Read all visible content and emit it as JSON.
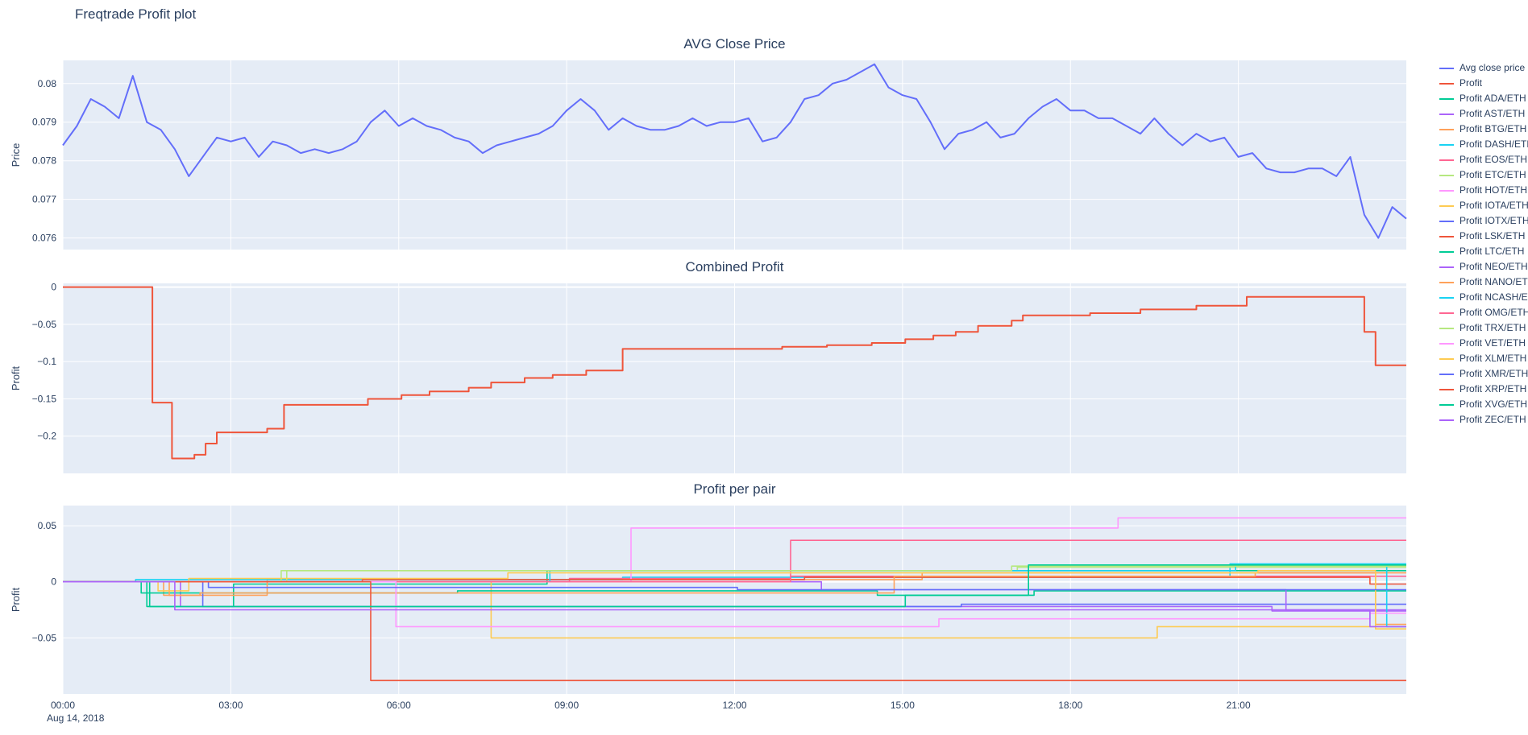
{
  "page_title": "Freqtrade Profit plot",
  "date_annotation": "Aug 14, 2018",
  "colors": {
    "text": "#2a3f5f",
    "plot_bg": "#E5ECF6",
    "grid": "#FFFFFF",
    "page_bg": "#FFFFFF"
  },
  "x_axis": {
    "range": [
      0,
      24
    ],
    "ticks": [
      {
        "v": 0,
        "label": "00:00"
      },
      {
        "v": 3,
        "label": "03:00"
      },
      {
        "v": 6,
        "label": "06:00"
      },
      {
        "v": 9,
        "label": "09:00"
      },
      {
        "v": 12,
        "label": "12:00"
      },
      {
        "v": 15,
        "label": "15:00"
      },
      {
        "v": 18,
        "label": "18:00"
      },
      {
        "v": 21,
        "label": "21:00"
      }
    ]
  },
  "legend": {
    "items": [
      {
        "label": "Avg close price",
        "color": "#636EFA"
      },
      {
        "label": "Profit",
        "color": "#EF553B"
      },
      {
        "label": "Profit ADA/ETH",
        "color": "#00CC96"
      },
      {
        "label": "Profit AST/ETH",
        "color": "#AB63FA"
      },
      {
        "label": "Profit BTG/ETH",
        "color": "#FFA15A"
      },
      {
        "label": "Profit DASH/ETH",
        "color": "#19D3F3"
      },
      {
        "label": "Profit EOS/ETH",
        "color": "#FF6692"
      },
      {
        "label": "Profit ETC/ETH",
        "color": "#B6E880"
      },
      {
        "label": "Profit HOT/ETH",
        "color": "#FF97FF"
      },
      {
        "label": "Profit IOTA/ETH",
        "color": "#FECB52"
      },
      {
        "label": "Profit IOTX/ETH",
        "color": "#636EFA"
      },
      {
        "label": "Profit LSK/ETH",
        "color": "#EF553B"
      },
      {
        "label": "Profit LTC/ETH",
        "color": "#00CC96"
      },
      {
        "label": "Profit NEO/ETH",
        "color": "#AB63FA"
      },
      {
        "label": "Profit NANO/ETH",
        "color": "#FFA15A"
      },
      {
        "label": "Profit NCASH/ETH",
        "color": "#19D3F3"
      },
      {
        "label": "Profit OMG/ETH",
        "color": "#FF6692"
      },
      {
        "label": "Profit TRX/ETH",
        "color": "#B6E880"
      },
      {
        "label": "Profit VET/ETH",
        "color": "#FF97FF"
      },
      {
        "label": "Profit XLM/ETH",
        "color": "#FECB52"
      },
      {
        "label": "Profit XMR/ETH",
        "color": "#636EFA"
      },
      {
        "label": "Profit XRP/ETH",
        "color": "#EF553B"
      },
      {
        "label": "Profit XVG/ETH",
        "color": "#00CC96"
      },
      {
        "label": "Profit ZEC/ETH",
        "color": "#AB63FA"
      }
    ]
  },
  "chart_data": [
    {
      "type": "line",
      "title": "AVG Close Price",
      "ylabel": "Price",
      "y_range": [
        0.0757,
        0.0806
      ],
      "line_width": 2,
      "y_ticks": [
        {
          "v": 0.076,
          "label": "0.076"
        },
        {
          "v": 0.077,
          "label": "0.077"
        },
        {
          "v": 0.078,
          "label": "0.078"
        },
        {
          "v": 0.079,
          "label": "0.079"
        },
        {
          "v": 0.08,
          "label": "0.08"
        }
      ],
      "series": [
        {
          "name": "Avg close price",
          "color": "#636EFA",
          "shape": "linear",
          "x0": 0,
          "dx": 0.25,
          "y": [
            0.0784,
            0.0789,
            0.0796,
            0.0794,
            0.0791,
            0.0802,
            0.079,
            0.0788,
            0.0783,
            0.0776,
            0.0781,
            0.0786,
            0.0785,
            0.0786,
            0.0781,
            0.0785,
            0.0784,
            0.0782,
            0.0783,
            0.0782,
            0.0783,
            0.0785,
            0.079,
            0.0793,
            0.0789,
            0.0791,
            0.0789,
            0.0788,
            0.0786,
            0.0785,
            0.0782,
            0.0784,
            0.0785,
            0.0786,
            0.0787,
            0.0789,
            0.0793,
            0.0796,
            0.0793,
            0.0788,
            0.0791,
            0.0789,
            0.0788,
            0.0788,
            0.0789,
            0.0791,
            0.0789,
            0.079,
            0.079,
            0.0791,
            0.0785,
            0.0786,
            0.079,
            0.0796,
            0.0797,
            0.08,
            0.0801,
            0.0803,
            0.0805,
            0.0799,
            0.0797,
            0.0796,
            0.079,
            0.0783,
            0.0787,
            0.0788,
            0.079,
            0.0786,
            0.0787,
            0.0791,
            0.0794,
            0.0796,
            0.0793,
            0.0793,
            0.0791,
            0.0791,
            0.0789,
            0.0787,
            0.0791,
            0.0787,
            0.0784,
            0.0787,
            0.0785,
            0.0786,
            0.0781,
            0.0782,
            0.0778,
            0.0777,
            0.0777,
            0.0778,
            0.0778,
            0.0776,
            0.0781,
            0.0766,
            0.076,
            0.0768,
            0.0765
          ]
        }
      ]
    },
    {
      "type": "line",
      "title": "Combined Profit",
      "ylabel": "Profit",
      "y_range": [
        -0.25,
        0.005
      ],
      "line_width": 2,
      "y_ticks": [
        {
          "v": 0,
          "label": "0"
        },
        {
          "v": -0.05,
          "label": "−0.05"
        },
        {
          "v": -0.1,
          "label": "−0.1"
        },
        {
          "v": -0.15,
          "label": "−0.15"
        },
        {
          "v": -0.2,
          "label": "−0.2"
        }
      ],
      "series": [
        {
          "name": "Profit",
          "color": "#EF553B",
          "shape": "hv",
          "points": [
            [
              0,
              0
            ],
            [
              1.6,
              -0.155
            ],
            [
              1.95,
              -0.23
            ],
            [
              2.35,
              -0.225
            ],
            [
              2.55,
              -0.21
            ],
            [
              2.75,
              -0.195
            ],
            [
              3.65,
              -0.19
            ],
            [
              3.95,
              -0.158
            ],
            [
              5.45,
              -0.15
            ],
            [
              6.05,
              -0.145
            ],
            [
              6.55,
              -0.14
            ],
            [
              7.25,
              -0.135
            ],
            [
              7.65,
              -0.128
            ],
            [
              8.25,
              -0.122
            ],
            [
              8.75,
              -0.118
            ],
            [
              9.35,
              -0.112
            ],
            [
              10.0,
              -0.083
            ],
            [
              12.85,
              -0.08
            ],
            [
              13.65,
              -0.078
            ],
            [
              14.45,
              -0.075
            ],
            [
              15.05,
              -0.07
            ],
            [
              15.55,
              -0.065
            ],
            [
              15.95,
              -0.06
            ],
            [
              16.35,
              -0.052
            ],
            [
              16.95,
              -0.045
            ],
            [
              17.15,
              -0.038
            ],
            [
              18.35,
              -0.035
            ],
            [
              19.25,
              -0.03
            ],
            [
              20.25,
              -0.025
            ],
            [
              21.15,
              -0.013
            ],
            [
              23.25,
              -0.06
            ],
            [
              23.45,
              -0.105
            ],
            [
              24,
              -0.105
            ]
          ]
        }
      ]
    },
    {
      "type": "line",
      "title": "Profit per pair",
      "ylabel": "Profit",
      "y_range": [
        -0.1,
        0.068
      ],
      "line_width": 1.6,
      "y_ticks": [
        {
          "v": 0.05,
          "label": "0.05"
        },
        {
          "v": 0,
          "label": "0"
        },
        {
          "v": -0.05,
          "label": "−0.05"
        }
      ],
      "series": [
        {
          "name": "Profit ADA/ETH",
          "color": "#00CC96",
          "shape": "hv",
          "points": [
            [
              0,
              0
            ],
            [
              1.5,
              -0.022
            ],
            [
              3.05,
              -0.002
            ],
            [
              8.65,
              0.01
            ],
            [
              24,
              0.01
            ]
          ]
        },
        {
          "name": "Profit AST/ETH",
          "color": "#AB63FA",
          "shape": "hv",
          "points": [
            [
              0,
              0
            ],
            [
              2.1,
              -0.022
            ],
            [
              21.6,
              -0.026
            ],
            [
              24,
              -0.026
            ]
          ]
        },
        {
          "name": "Profit BTG/ETH",
          "color": "#FFA15A",
          "shape": "hv",
          "points": [
            [
              0,
              0
            ],
            [
              1.8,
              -0.012
            ],
            [
              3.65,
              0.002
            ],
            [
              15.35,
              0.008
            ],
            [
              23.45,
              -0.038
            ],
            [
              24,
              -0.038
            ]
          ]
        },
        {
          "name": "Profit DASH/ETH",
          "color": "#19D3F3",
          "shape": "hv",
          "points": [
            [
              0,
              0
            ],
            [
              1.3,
              0.002
            ],
            [
              10.0,
              0.004
            ],
            [
              20.85,
              0.016
            ],
            [
              24,
              0.016
            ]
          ]
        },
        {
          "name": "Profit EOS/ETH",
          "color": "#FF6692",
          "shape": "hv",
          "points": [
            [
              0,
              0
            ],
            [
              9.05,
              0.003
            ],
            [
              13.0,
              0.005
            ],
            [
              24,
              0.005
            ]
          ]
        },
        {
          "name": "Profit ETC/ETH",
          "color": "#B6E880",
          "shape": "hv",
          "points": [
            [
              0,
              0
            ],
            [
              4.0,
              0.01
            ],
            [
              17.05,
              0.013
            ],
            [
              24,
              0.013
            ]
          ]
        },
        {
          "name": "Profit HOT/ETH",
          "color": "#FF97FF",
          "shape": "hv",
          "points": [
            [
              0,
              0
            ],
            [
              10.15,
              0.048
            ],
            [
              18.85,
              0.057
            ],
            [
              24,
              0.057
            ]
          ]
        },
        {
          "name": "Profit IOTA/ETH",
          "color": "#FECB52",
          "shape": "hv",
          "points": [
            [
              0,
              0
            ],
            [
              7.65,
              -0.05
            ],
            [
              19.55,
              -0.04
            ],
            [
              24,
              -0.04
            ]
          ]
        },
        {
          "name": "Profit IOTX/ETH",
          "color": "#636EFA",
          "shape": "hv",
          "points": [
            [
              0,
              0
            ],
            [
              2.5,
              -0.022
            ],
            [
              16.05,
              -0.02
            ],
            [
              24,
              -0.02
            ]
          ]
        },
        {
          "name": "Profit LSK/ETH",
          "color": "#EF553B",
          "shape": "hv",
          "points": [
            [
              0,
              0
            ],
            [
              5.35,
              0.002
            ],
            [
              13.25,
              0.004
            ],
            [
              23.35,
              -0.002
            ],
            [
              24,
              -0.002
            ]
          ]
        },
        {
          "name": "Profit LTC/ETH",
          "color": "#00CC96",
          "shape": "hv",
          "points": [
            [
              0,
              0
            ],
            [
              1.4,
              -0.01
            ],
            [
              7.05,
              -0.008
            ],
            [
              14.55,
              -0.012
            ],
            [
              17.35,
              -0.008
            ],
            [
              24,
              -0.008
            ]
          ]
        },
        {
          "name": "Profit NEO/ETH",
          "color": "#AB63FA",
          "shape": "hv",
          "points": [
            [
              0,
              0
            ],
            [
              13.55,
              -0.007
            ],
            [
              21.85,
              -0.025
            ],
            [
              24,
              -0.025
            ]
          ]
        },
        {
          "name": "Profit NANO/ETH",
          "color": "#FFA15A",
          "shape": "hv",
          "points": [
            [
              0,
              0
            ],
            [
              1.9,
              -0.012
            ],
            [
              2.45,
              -0.01
            ],
            [
              14.85,
              0.005
            ],
            [
              21.3,
              0.008
            ],
            [
              24,
              0.008
            ]
          ]
        },
        {
          "name": "Profit NCASH/ETH",
          "color": "#19D3F3",
          "shape": "hv",
          "points": [
            [
              0,
              0
            ],
            [
              8.7,
              0.01
            ],
            [
              20.95,
              0.015
            ],
            [
              23.65,
              -0.04
            ],
            [
              24,
              -0.04
            ]
          ]
        },
        {
          "name": "Profit OMG/ETH",
          "color": "#FF6692",
          "shape": "hv",
          "points": [
            [
              0,
              0
            ],
            [
              13.0,
              0.037
            ],
            [
              24,
              0.037
            ]
          ]
        },
        {
          "name": "Profit TRX/ETH",
          "color": "#B6E880",
          "shape": "hv",
          "points": [
            [
              0,
              0
            ],
            [
              3.9,
              0.01
            ],
            [
              16.95,
              0.014
            ],
            [
              24,
              0.014
            ]
          ]
        },
        {
          "name": "Profit VET/ETH",
          "color": "#FF97FF",
          "shape": "hv",
          "points": [
            [
              0,
              0
            ],
            [
              5.95,
              -0.04
            ],
            [
              15.65,
              -0.033
            ],
            [
              23.35,
              -0.028
            ],
            [
              24,
              -0.028
            ]
          ]
        },
        {
          "name": "Profit XLM/ETH",
          "color": "#FECB52",
          "shape": "hv",
          "points": [
            [
              0,
              0
            ],
            [
              1.7,
              -0.008
            ],
            [
              2.25,
              0.003
            ],
            [
              7.95,
              0.008
            ],
            [
              21.35,
              0.01
            ],
            [
              23.45,
              -0.042
            ],
            [
              24,
              -0.042
            ]
          ]
        },
        {
          "name": "Profit XMR/ETH",
          "color": "#636EFA",
          "shape": "hv",
          "points": [
            [
              0,
              0
            ],
            [
              2.6,
              -0.005
            ],
            [
              12.05,
              -0.007
            ],
            [
              24,
              -0.007
            ]
          ]
        },
        {
          "name": "Profit XRP/ETH",
          "color": "#EF553B",
          "shape": "hv",
          "points": [
            [
              0,
              0
            ],
            [
              5.5,
              -0.088
            ],
            [
              24,
              -0.088
            ]
          ]
        },
        {
          "name": "Profit XVG/ETH",
          "color": "#00CC96",
          "shape": "hv",
          "points": [
            [
              0,
              0
            ],
            [
              1.55,
              -0.022
            ],
            [
              15.05,
              -0.012
            ],
            [
              17.25,
              0.015
            ],
            [
              24,
              0.015
            ]
          ]
        },
        {
          "name": "Profit ZEC/ETH",
          "color": "#AB63FA",
          "shape": "hv",
          "points": [
            [
              0,
              0
            ],
            [
              2.0,
              -0.025
            ],
            [
              23.35,
              -0.04
            ],
            [
              24,
              -0.04
            ]
          ]
        }
      ]
    }
  ]
}
